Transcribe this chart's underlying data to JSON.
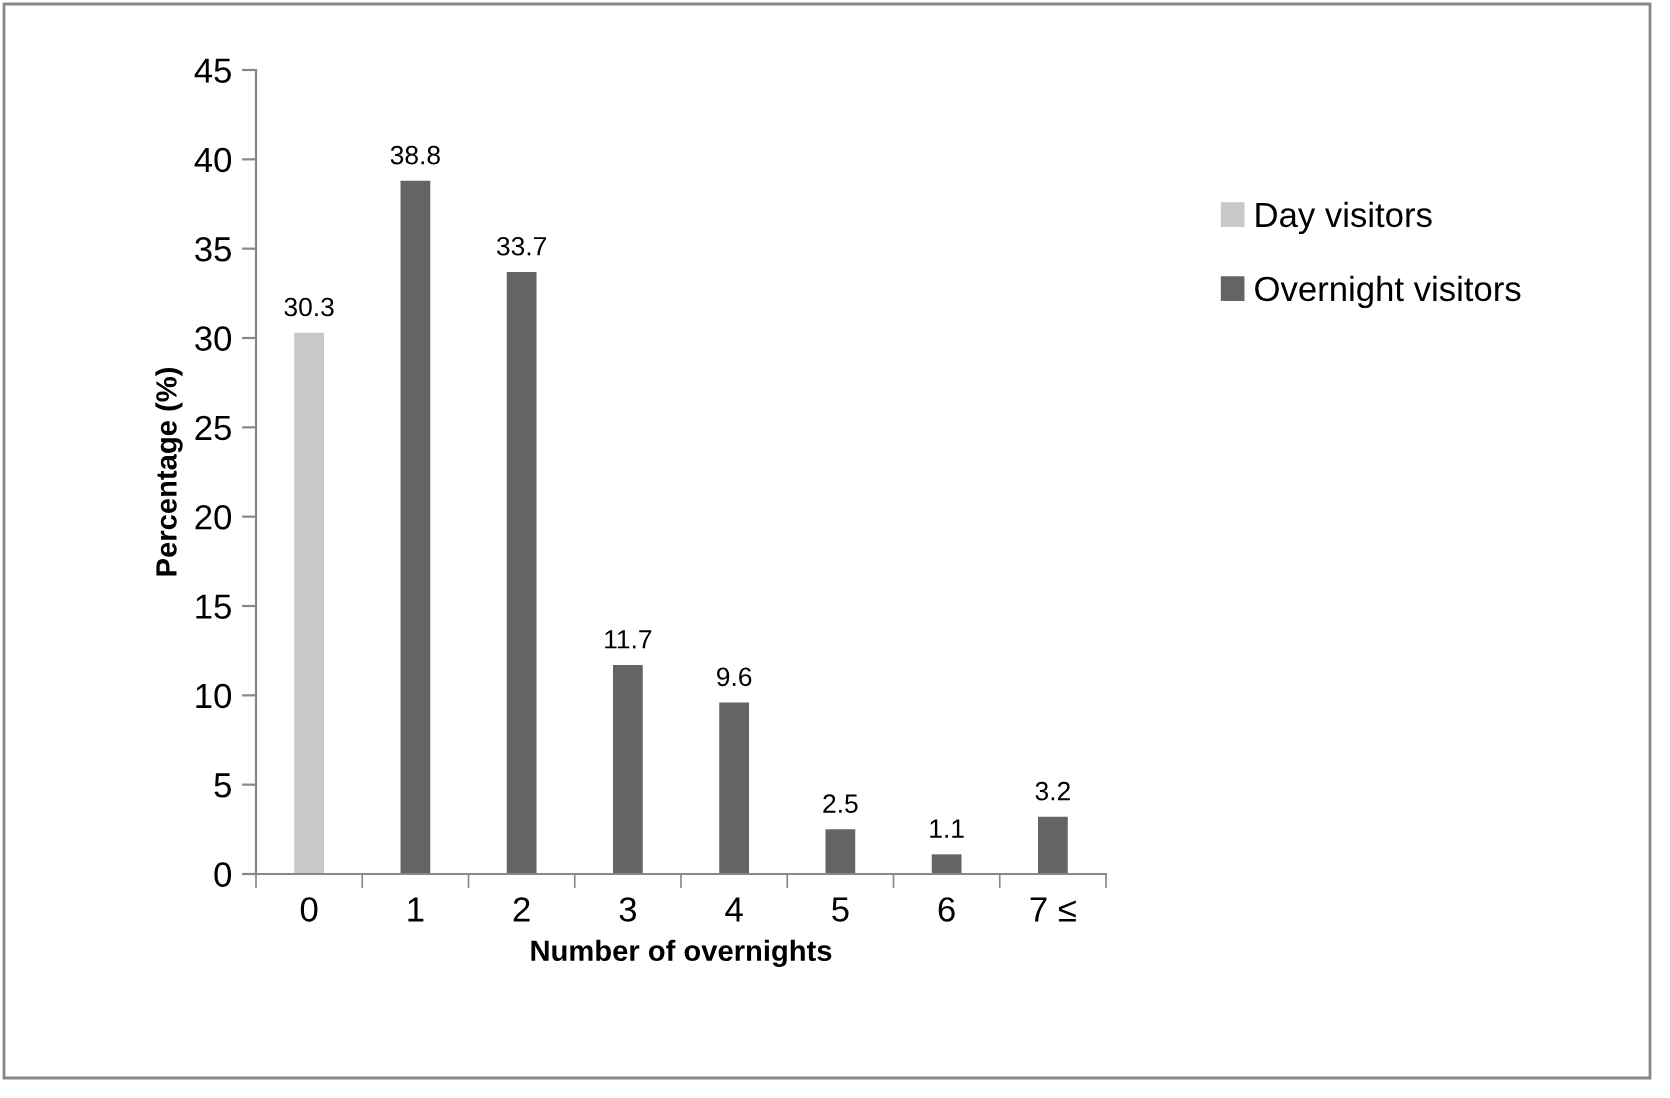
{
  "chart_data": {
    "type": "bar",
    "xlabel": "Number of overnights",
    "ylabel": "Percentage (%)",
    "categories": [
      "0",
      "1",
      "2",
      "3",
      "4",
      "5",
      "6",
      "7 ≤"
    ],
    "series": [
      {
        "name": "Day visitors",
        "color": "#c8c8c8",
        "values": [
          30.3,
          null,
          null,
          null,
          null,
          null,
          null,
          null
        ]
      },
      {
        "name": "Overnight visitors",
        "color": "#646464",
        "values": [
          null,
          38.8,
          33.7,
          11.7,
          9.6,
          2.5,
          1.1,
          3.2
        ]
      }
    ],
    "stacked": true,
    "data_labels": true,
    "ylim": [
      0,
      45
    ],
    "yticks": [
      0,
      5,
      10,
      15,
      20,
      25,
      30,
      35,
      40,
      45
    ],
    "grid": false,
    "legend": "right"
  }
}
